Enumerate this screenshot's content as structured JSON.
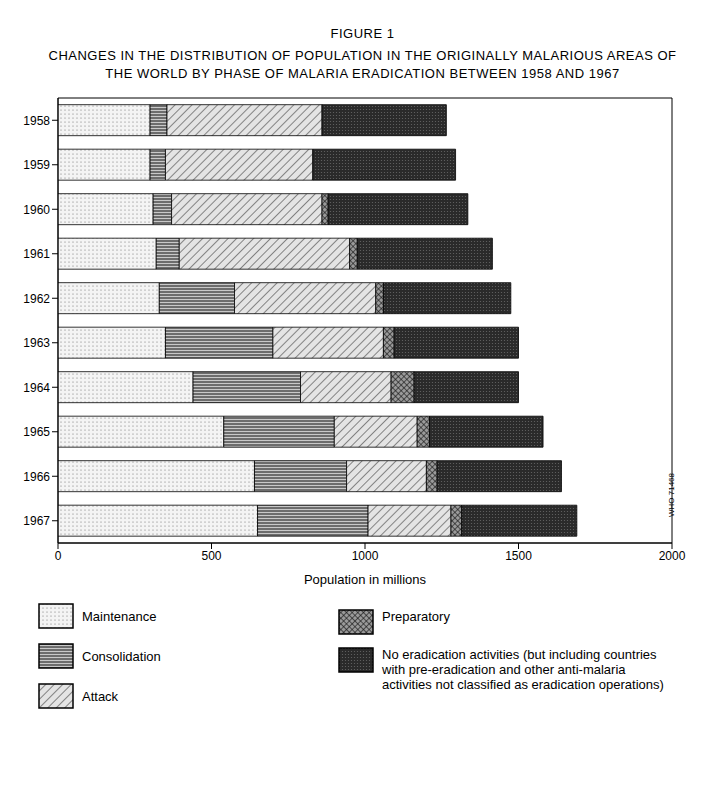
{
  "chart_data": {
    "type": "bar",
    "orientation": "horizontal",
    "stacked": true,
    "grid": false,
    "legend": "bottom",
    "title": "FIGURE 1",
    "subtitle": "CHANGES IN THE DISTRIBUTION OF POPULATION IN THE ORIGINALLY MALARIOUS AREAS OF THE WORLD BY PHASE OF MALARIA ERADICATION BETWEEN 1958 AND 1967",
    "x_label": "Population in millions",
    "annotation": "WHO 71468",
    "categories": [
      "1958",
      "1959",
      "1960",
      "1961",
      "1962",
      "1963",
      "1964",
      "1965",
      "1966",
      "1967"
    ],
    "xlim": [
      0,
      2000
    ],
    "xticks": [
      0,
      500,
      1000,
      1500,
      2000
    ],
    "series": [
      {
        "name": "Maintenance",
        "color": "#f4f4f4",
        "values": [
          300,
          300,
          310,
          320,
          330,
          350,
          440,
          540,
          640,
          650
        ]
      },
      {
        "name": "Consolidation",
        "color": "#c8c8c8",
        "values": [
          55,
          50,
          60,
          75,
          245,
          350,
          350,
          360,
          300,
          360
        ]
      },
      {
        "name": "Attack",
        "color": "#e4e4e4",
        "values": [
          505,
          480,
          490,
          555,
          460,
          360,
          295,
          270,
          260,
          270
        ]
      },
      {
        "name": "Preparatory",
        "color": "#9a9a9a",
        "values": [
          0,
          0,
          20,
          25,
          25,
          35,
          75,
          40,
          35,
          35
        ]
      },
      {
        "name": "No eradication activities (but including countries with pre-eradication and other anti-malaria activities not classified as eradication operations)",
        "color": "#2a2a2a",
        "values": [
          405,
          465,
          455,
          440,
          415,
          405,
          340,
          370,
          405,
          375
        ]
      }
    ]
  }
}
